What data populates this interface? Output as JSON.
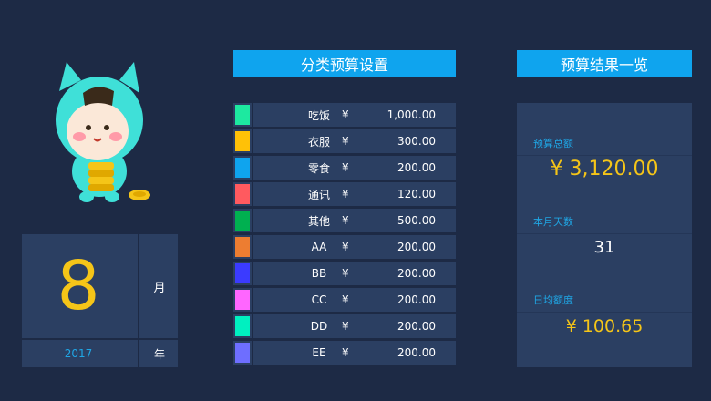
{
  "calendar": {
    "month": "8",
    "month_unit": "月",
    "year": "2017",
    "year_unit": "年"
  },
  "headers": {
    "category_budget": "分类预算设置",
    "budget_results": "预算结果一览"
  },
  "currency_symbol": "¥",
  "categories": [
    {
      "name": "吃饭",
      "amount": "1,000.00",
      "color": "#1de9a0"
    },
    {
      "name": "衣服",
      "amount": "300.00",
      "color": "#ffc107"
    },
    {
      "name": "零食",
      "amount": "200.00",
      "color": "#0fa4ee"
    },
    {
      "name": "通讯",
      "amount": "120.00",
      "color": "#ff5a5f"
    },
    {
      "name": "其他",
      "amount": "500.00",
      "color": "#00b050"
    },
    {
      "name": "AA",
      "amount": "200.00",
      "color": "#ed7d31"
    },
    {
      "name": "BB",
      "amount": "200.00",
      "color": "#3b3bff"
    },
    {
      "name": "CC",
      "amount": "200.00",
      "color": "#ff66ff"
    },
    {
      "name": "DD",
      "amount": "200.00",
      "color": "#00f0c0"
    },
    {
      "name": "EE",
      "amount": "200.00",
      "color": "#6e6eff"
    }
  ],
  "results": {
    "total_label": "预算总额",
    "total_value": "¥ 3,120.00",
    "days_label": "本月天数",
    "days_value": "31",
    "daily_label": "日均额度",
    "daily_value": "¥ 100.65"
  }
}
